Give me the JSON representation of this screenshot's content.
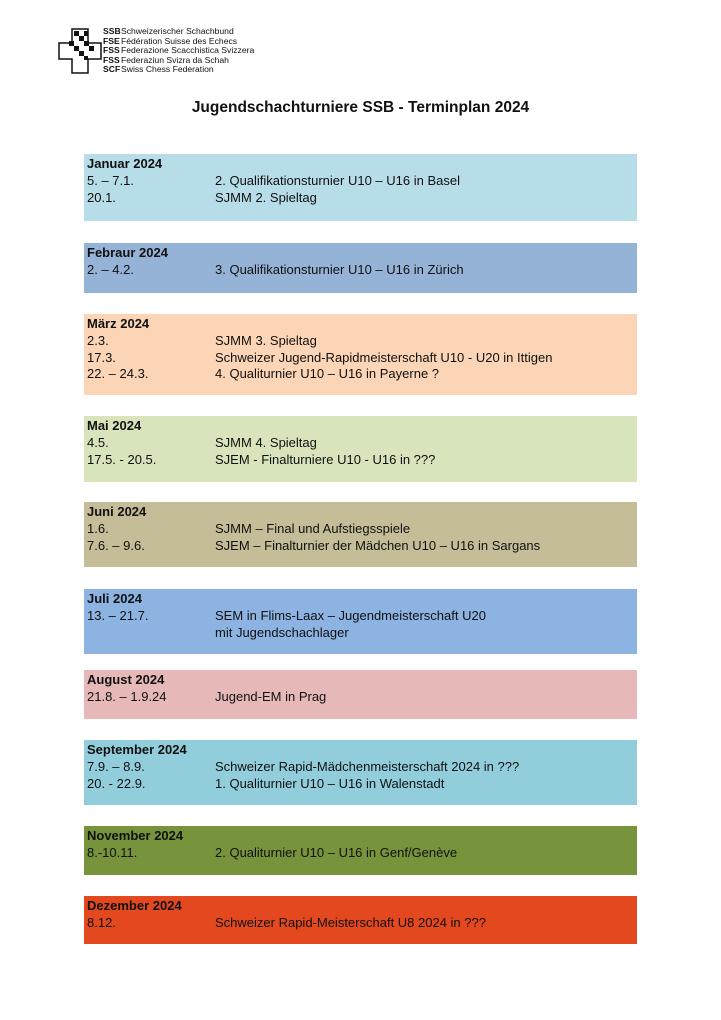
{
  "logo": {
    "lines": [
      {
        "abbr": "SSB",
        "name": "Schweizerischer Schachbund"
      },
      {
        "abbr": "FSE",
        "name": "Fédération Suisse des Echecs"
      },
      {
        "abbr": "FSS",
        "name": "Federazione Scacchistica Svizzera"
      },
      {
        "abbr": "FSS",
        "name": "Federaziun Svizra da Schah"
      },
      {
        "abbr": "SCF",
        "name": "Swiss Chess Federation"
      }
    ]
  },
  "title": "Jugendschachturniere SSB -  Terminplan 2024",
  "months": [
    {
      "name": "Januar 2024",
      "color": "#b7dde8",
      "events": [
        {
          "date": "5. – 7.1.",
          "text": "2. Qualifikationsturnier U10 – U16 in Basel"
        },
        {
          "date": "20.1.",
          "text": "SJMM 2. Spieltag"
        }
      ]
    },
    {
      "name": "Febraur 2024",
      "color": "#95b3d7",
      "events": [
        {
          "date": "2. – 4.2.",
          "text": "3. Qualifikationsturnier U10 – U16 in Zürich"
        }
      ]
    },
    {
      "name": "März 2024",
      "color": "#fbd5b5",
      "events": [
        {
          "date": "2.3.",
          "text": "SJMM 3. Spieltag"
        },
        {
          "date": "17.3.",
          "text": "Schweizer Jugend-Rapidmeisterschaft U10 - U20 in Ittigen"
        },
        {
          "date": "22. – 24.3.",
          "text": "4. Qualiturnier U10 – U16 in Payerne ?"
        }
      ]
    },
    {
      "name": "Mai 2024",
      "color": "#d7e4bc",
      "events": [
        {
          "date": "4.5.",
          "text": "SJMM 4. Spieltag"
        },
        {
          "date": "17.5. - 20.5.",
          "text": "SJEM - Finalturniere U10 - U16 in ???"
        }
      ]
    },
    {
      "name": "Juni 2024",
      "color": "#c4bd97",
      "events": [
        {
          "date": "1.6.",
          "text": "SJMM – Final und Aufstiegsspiele"
        },
        {
          "date": "7.6. – 9.6.",
          "text": "SJEM – Finalturnier der Mädchen U10 – U16 in Sargans"
        }
      ]
    },
    {
      "name": "Juli 2024",
      "color": "#8db3e2",
      "events": [
        {
          "date": "13. – 21.7.",
          "text": "SEM in Flims-Laax – Jugendmeisterschaft U20"
        },
        {
          "date": "",
          "text": "mit Jugendschachlager"
        }
      ]
    },
    {
      "name": "August 2024",
      "color": "#e6b9b8",
      "events": [
        {
          "date": "21.8. – 1.9.24",
          "text": "Jugend-EM in Prag"
        }
      ]
    },
    {
      "name": "September 2024",
      "color": "#92cddc",
      "events": [
        {
          "date": "7.9. – 8.9.",
          "text": "Schweizer Rapid-Mädchenmeisterschaft 2024 in ???"
        },
        {
          "date": "20. - 22.9.",
          "text": "1. Qualiturnier U10 – U16 in Walenstadt"
        }
      ]
    },
    {
      "name": "November 2024",
      "color": "#77933c",
      "events": [
        {
          "date": "8.-10.11.",
          "text": "2. Qualiturnier U10 – U16 in Genf/Genève"
        }
      ]
    },
    {
      "name": "Dezember 2024",
      "color": "#e3481f",
      "events": [
        {
          "date": "8.12.",
          "text": "Schweizer Rapid-Meisterschaft U8 2024 in ???"
        }
      ]
    }
  ]
}
